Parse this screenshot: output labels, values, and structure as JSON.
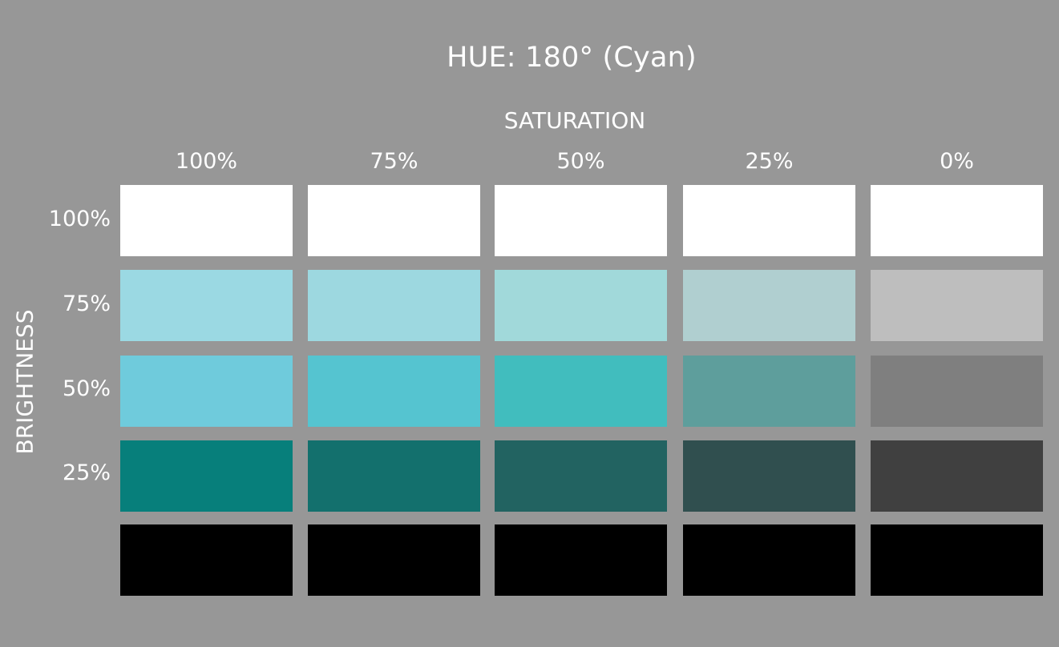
{
  "title": "HUE: 180° (Cyan)",
  "saturation_label": "SATURATION",
  "brightness_label": "BRIGHTNESS",
  "saturation_levels": [
    "100%",
    "75%",
    "50%",
    "25%",
    "0%"
  ],
  "brightness_levels": [
    "100%",
    "75%",
    "50%",
    "25%",
    ""
  ],
  "swatch_colors": [
    [
      "#ffffff",
      "#ffffff",
      "#ffffff",
      "#ffffff",
      "#ffffff"
    ],
    [
      "#9bd9e3",
      "#9dd8e0",
      "#a1d9da",
      "#b0cfd0",
      "#bebebe"
    ],
    [
      "#6fcbdc",
      "#55c4d0",
      "#41bdbe",
      "#5e9e9c",
      "#7f7f7f"
    ],
    [
      "#077f7b",
      "#13706d",
      "#226361",
      "#304f4f",
      "#404040"
    ],
    [
      "#000000",
      "#000000",
      "#000000",
      "#000000",
      "#000000"
    ]
  ]
}
